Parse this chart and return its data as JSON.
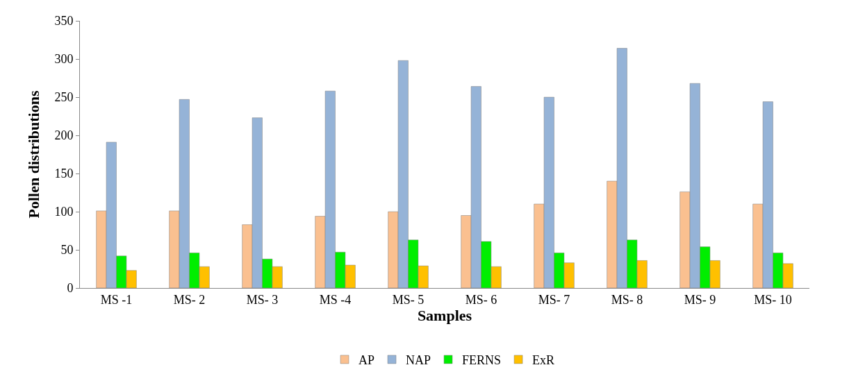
{
  "chart_data": {
    "type": "bar",
    "xlabel": "Samples",
    "ylabel": "Pollen distributions",
    "categories": [
      "MS -1",
      "MS- 2",
      "MS- 3",
      "MS -4",
      "MS- 5",
      "MS- 6",
      "MS- 7",
      "MS- 8",
      "MS- 9",
      "MS- 10"
    ],
    "series": [
      {
        "name": "AP",
        "color": "#fac090",
        "values": [
          101,
          101,
          83,
          94,
          100,
          95,
          110,
          140,
          126,
          110
        ]
      },
      {
        "name": "NAP",
        "color": "#95b3d7",
        "values": [
          191,
          247,
          223,
          258,
          298,
          264,
          250,
          314,
          268,
          244
        ]
      },
      {
        "name": "FERNS",
        "color": "#00ee00",
        "values": [
          42,
          46,
          38,
          47,
          63,
          61,
          46,
          63,
          54,
          46
        ]
      },
      {
        "name": "ExR",
        "color": "#ffc000",
        "values": [
          23,
          28,
          28,
          30,
          29,
          28,
          33,
          36,
          36,
          32
        ]
      }
    ],
    "ylim": [
      0,
      350
    ],
    "yticks": [
      0,
      50,
      100,
      150,
      200,
      250,
      300,
      350
    ],
    "grid": false,
    "legend": "bottom"
  }
}
